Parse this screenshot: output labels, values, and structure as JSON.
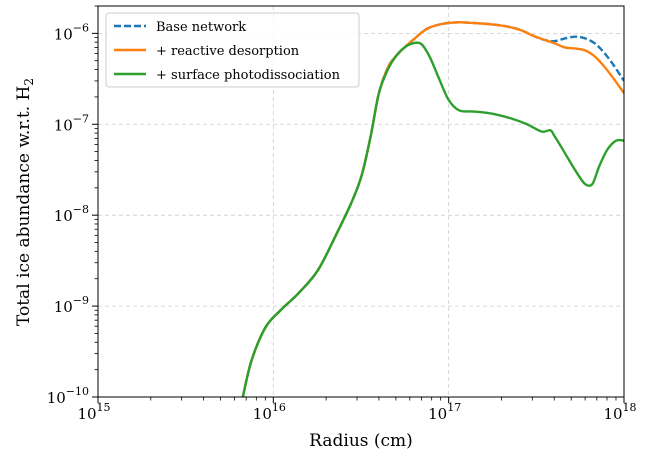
{
  "chart_data": {
    "type": "line",
    "xlabel": "Radius (cm)",
    "ylabel": "Total ice abundance w.r.t. H",
    "ylabel_subscript": "2",
    "xscale": "log",
    "yscale": "log",
    "xlim": [
      1000000000000000.0,
      1e+18
    ],
    "ylim": [
      1e-10,
      2e-06
    ],
    "grid": true,
    "legend_position": "upper-left",
    "x_ticks": [
      {
        "base": "10",
        "exp": "15",
        "value": 1000000000000000.0
      },
      {
        "base": "10",
        "exp": "16",
        "value": 1e+16
      },
      {
        "base": "10",
        "exp": "17",
        "value": 1e+17
      },
      {
        "base": "10",
        "exp": "18",
        "value": 1e+18
      }
    ],
    "y_ticks": [
      {
        "base": "10",
        "exp": "−10",
        "value": 1e-10
      },
      {
        "base": "10",
        "exp": "−9",
        "value": 1e-09
      },
      {
        "base": "10",
        "exp": "−8",
        "value": 1e-08
      },
      {
        "base": "10",
        "exp": "−7",
        "value": 1e-07
      },
      {
        "base": "10",
        "exp": "−6",
        "value": 1e-06
      }
    ],
    "series": [
      {
        "name": "Base network",
        "color": "#1f77b4",
        "dash": "dashed",
        "x": [
          6700000000000000.0,
          7500000000000000.0,
          9000000000000000.0,
          1.1e+16,
          1.4e+16,
          1.8e+16,
          2.3e+16,
          2.8e+16,
          3.2e+16,
          3.6e+16,
          4e+16,
          4.5e+16,
          5e+16,
          5.6e+16,
          6.5e+16,
          7.5e+16,
          9e+16,
          1.1e+17,
          1.4e+17,
          1.8e+17,
          2.2e+17,
          2.6e+17,
          3e+17,
          3.5e+17,
          4e+17,
          4.6e+17,
          5.3e+17,
          6e+17,
          6.8e+17,
          7.5e+17,
          8.5e+17,
          1e+18
        ],
        "y": [
          1e-10,
          2.5e-10,
          5.8e-10,
          9e-10,
          1.4e-09,
          2.5e-09,
          6.3e-09,
          1.4e-08,
          2.8e-08,
          7.6e-08,
          2.2e-07,
          4.2e-07,
          5.6e-07,
          7e-07,
          9e-07,
          1.12e-06,
          1.26e-06,
          1.32e-06,
          1.3e-06,
          1.25e-06,
          1.18e-06,
          1.08e-06,
          9.5e-07,
          8.5e-07,
          8.2e-07,
          8.8e-07,
          9.2e-07,
          8.8e-07,
          7.8e-07,
          6.5e-07,
          4.8e-07,
          3e-07
        ]
      },
      {
        "name": "+ reactive desorption",
        "color": "#ff7f0e",
        "dash": "solid",
        "x": [
          6700000000000000.0,
          7500000000000000.0,
          9000000000000000.0,
          1.1e+16,
          1.4e+16,
          1.8e+16,
          2.3e+16,
          2.8e+16,
          3.2e+16,
          3.6e+16,
          4e+16,
          4.5e+16,
          5e+16,
          5.6e+16,
          6.5e+16,
          7.5e+16,
          9e+16,
          1.1e+17,
          1.4e+17,
          1.8e+17,
          2.2e+17,
          2.6e+17,
          3e+17,
          3.5e+17,
          4e+17,
          4.6e+17,
          5.3e+17,
          6e+17,
          6.8e+17,
          7.5e+17,
          8.5e+17,
          1e+18
        ],
        "y": [
          1e-10,
          2.5e-10,
          5.8e-10,
          9e-10,
          1.4e-09,
          2.5e-09,
          6.3e-09,
          1.4e-08,
          2.8e-08,
          7.6e-08,
          2.2e-07,
          4.2e-07,
          5.6e-07,
          7e-07,
          9e-07,
          1.12e-06,
          1.26e-06,
          1.32e-06,
          1.3e-06,
          1.25e-06,
          1.18e-06,
          1.08e-06,
          9.5e-07,
          8.5e-07,
          7.8e-07,
          7e-07,
          6.8e-07,
          6.5e-07,
          5.6e-07,
          4.6e-07,
          3.4e-07,
          2.2e-07
        ]
      },
      {
        "name": "+ surface photodissociation",
        "color": "#2ca02c",
        "dash": "solid",
        "x": [
          6700000000000000.0,
          7500000000000000.0,
          9000000000000000.0,
          1.1e+16,
          1.4e+16,
          1.8e+16,
          2.3e+16,
          2.8e+16,
          3.2e+16,
          3.6e+16,
          4e+16,
          4.5e+16,
          5e+16,
          5.6e+16,
          6.3e+16,
          7e+16,
          7.8e+16,
          8.8e+16,
          1e+17,
          1.15e+17,
          1.4e+17,
          1.8e+17,
          2.3e+17,
          2.8e+17,
          3.4e+17,
          3.8e+17,
          4e+17,
          4.3e+17,
          4.8e+17,
          5.4e+17,
          6e+17,
          6.6e+17,
          7.2e+17,
          8e+17,
          9e+17,
          1e+18
        ],
        "y": [
          1e-10,
          2.5e-10,
          5.8e-10,
          9e-10,
          1.4e-09,
          2.5e-09,
          6.3e-09,
          1.4e-08,
          2.8e-08,
          7.6e-08,
          2.2e-07,
          4e-07,
          5.6e-07,
          7e-07,
          7.8e-07,
          7.6e-07,
          5.5e-07,
          3.2e-07,
          1.85e-07,
          1.42e-07,
          1.38e-07,
          1.3e-07,
          1.15e-07,
          1e-07,
          8.3e-08,
          8.6e-08,
          7.5e-08,
          6e-08,
          4.2e-08,
          2.9e-08,
          2.2e-08,
          2.2e-08,
          3.4e-08,
          5.2e-08,
          6.6e-08,
          6.6e-08
        ]
      }
    ]
  }
}
